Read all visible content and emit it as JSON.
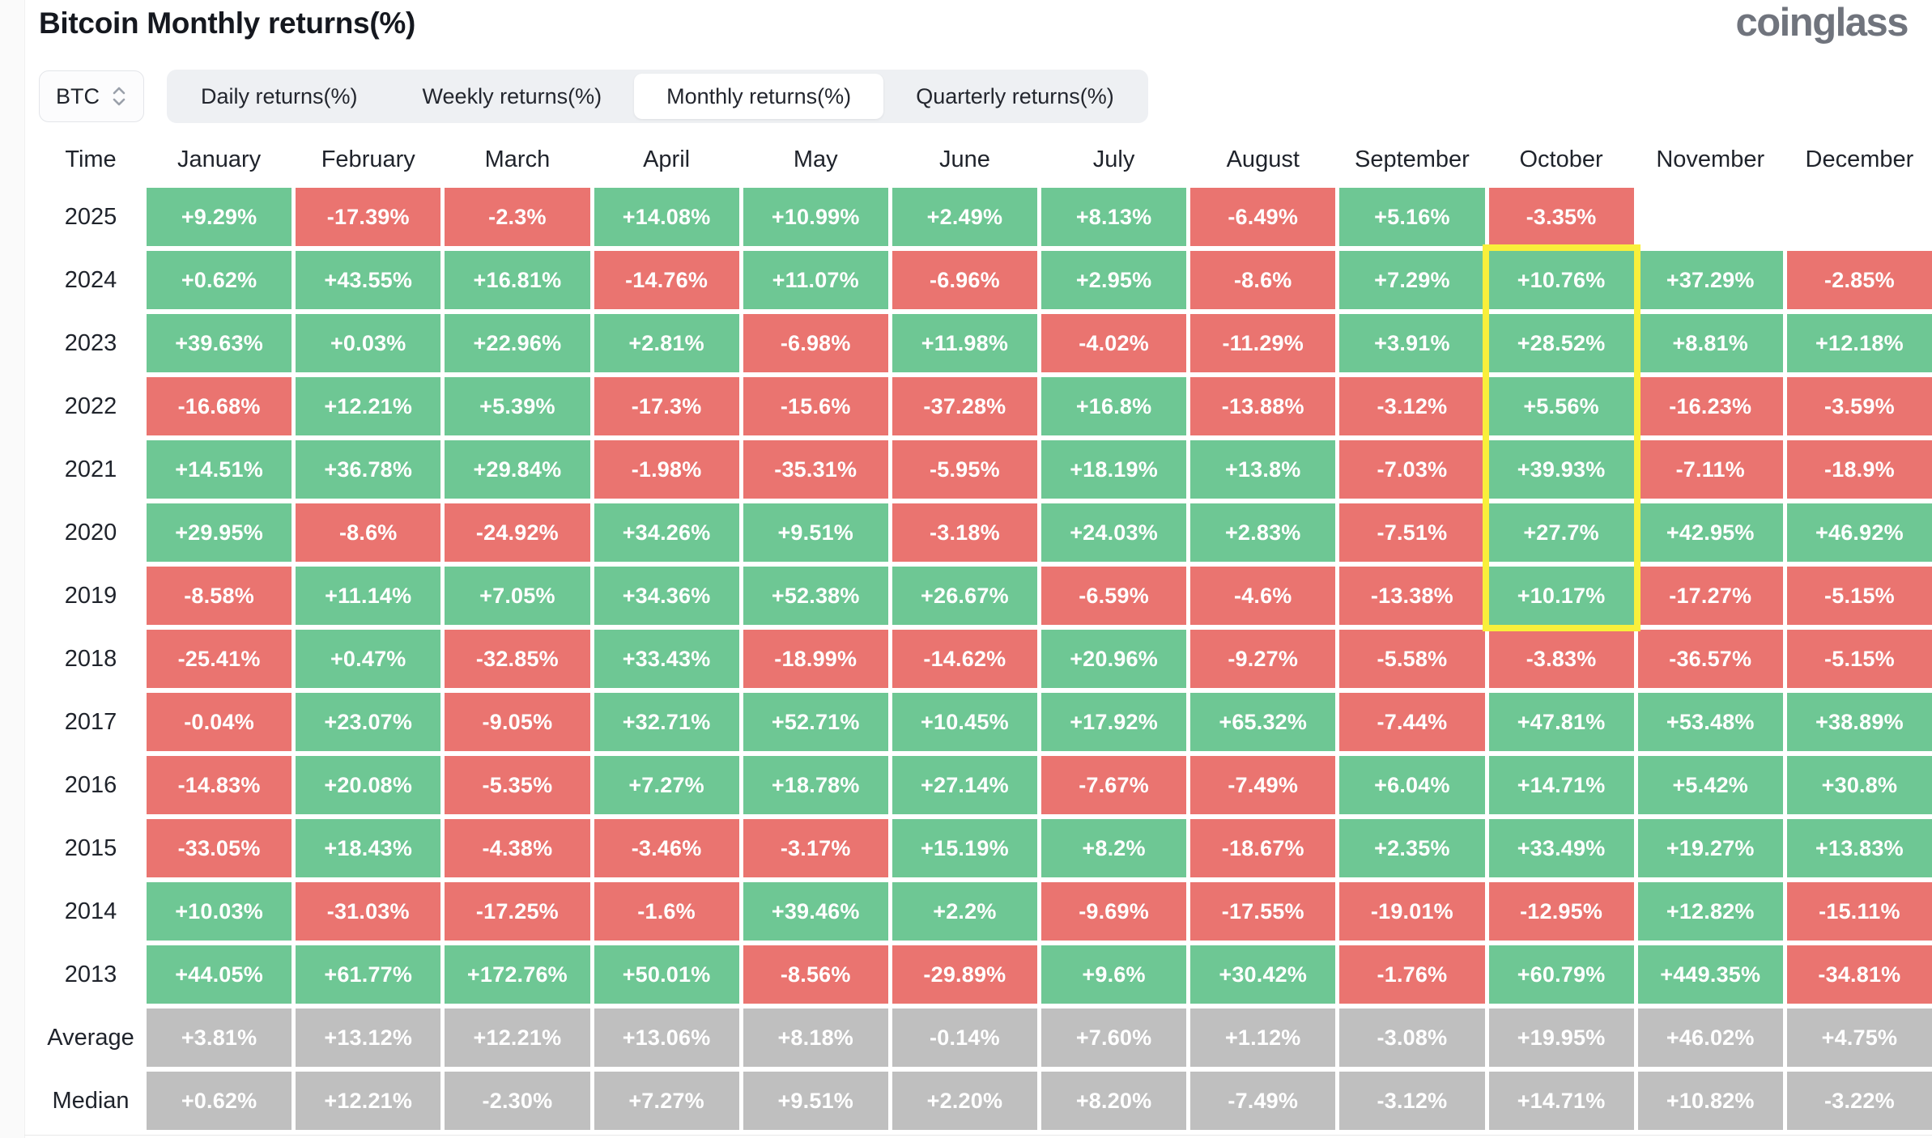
{
  "header": {
    "title": "Bitcoin Monthly returns(%)",
    "brand": "coinglass"
  },
  "controls": {
    "symbol_select": {
      "value": "BTC",
      "icon": "updown-chevrons-icon"
    },
    "tabs": [
      {
        "label": "Daily returns(%)",
        "selected": false
      },
      {
        "label": "Weekly returns(%)",
        "selected": false
      },
      {
        "label": "Monthly returns(%)",
        "selected": true
      },
      {
        "label": "Quarterly returns(%)",
        "selected": false
      }
    ]
  },
  "colors": {
    "positive": "#6ec794",
    "negative": "#ea7470",
    "neutral": "#bfbfbf",
    "highlight": "#f9ef3b"
  },
  "chart_data": {
    "type": "heatmap",
    "title": "Bitcoin Monthly returns(%)",
    "columns": [
      "Time",
      "January",
      "February",
      "March",
      "April",
      "May",
      "June",
      "July",
      "August",
      "September",
      "October",
      "November",
      "December"
    ],
    "rows": [
      {
        "label": "2025",
        "values": [
          "+9.29%",
          "-17.39%",
          "-2.3%",
          "+14.08%",
          "+10.99%",
          "+2.49%",
          "+8.13%",
          "-6.49%",
          "+5.16%",
          "-3.35%",
          "",
          ""
        ]
      },
      {
        "label": "2024",
        "values": [
          "+0.62%",
          "+43.55%",
          "+16.81%",
          "-14.76%",
          "+11.07%",
          "-6.96%",
          "+2.95%",
          "-8.6%",
          "+7.29%",
          "+10.76%",
          "+37.29%",
          "-2.85%"
        ]
      },
      {
        "label": "2023",
        "values": [
          "+39.63%",
          "+0.03%",
          "+22.96%",
          "+2.81%",
          "-6.98%",
          "+11.98%",
          "-4.02%",
          "-11.29%",
          "+3.91%",
          "+28.52%",
          "+8.81%",
          "+12.18%"
        ]
      },
      {
        "label": "2022",
        "values": [
          "-16.68%",
          "+12.21%",
          "+5.39%",
          "-17.3%",
          "-15.6%",
          "-37.28%",
          "+16.8%",
          "-13.88%",
          "-3.12%",
          "+5.56%",
          "-16.23%",
          "-3.59%"
        ]
      },
      {
        "label": "2021",
        "values": [
          "+14.51%",
          "+36.78%",
          "+29.84%",
          "-1.98%",
          "-35.31%",
          "-5.95%",
          "+18.19%",
          "+13.8%",
          "-7.03%",
          "+39.93%",
          "-7.11%",
          "-18.9%"
        ]
      },
      {
        "label": "2020",
        "values": [
          "+29.95%",
          "-8.6%",
          "-24.92%",
          "+34.26%",
          "+9.51%",
          "-3.18%",
          "+24.03%",
          "+2.83%",
          "-7.51%",
          "+27.7%",
          "+42.95%",
          "+46.92%"
        ]
      },
      {
        "label": "2019",
        "values": [
          "-8.58%",
          "+11.14%",
          "+7.05%",
          "+34.36%",
          "+52.38%",
          "+26.67%",
          "-6.59%",
          "-4.6%",
          "-13.38%",
          "+10.17%",
          "-17.27%",
          "-5.15%"
        ]
      },
      {
        "label": "2018",
        "values": [
          "-25.41%",
          "+0.47%",
          "-32.85%",
          "+33.43%",
          "-18.99%",
          "-14.62%",
          "+20.96%",
          "-9.27%",
          "-5.58%",
          "-3.83%",
          "-36.57%",
          "-5.15%"
        ]
      },
      {
        "label": "2017",
        "values": [
          "-0.04%",
          "+23.07%",
          "-9.05%",
          "+32.71%",
          "+52.71%",
          "+10.45%",
          "+17.92%",
          "+65.32%",
          "-7.44%",
          "+47.81%",
          "+53.48%",
          "+38.89%"
        ]
      },
      {
        "label": "2016",
        "values": [
          "-14.83%",
          "+20.08%",
          "-5.35%",
          "+7.27%",
          "+18.78%",
          "+27.14%",
          "-7.67%",
          "-7.49%",
          "+6.04%",
          "+14.71%",
          "+5.42%",
          "+30.8%"
        ]
      },
      {
        "label": "2015",
        "values": [
          "-33.05%",
          "+18.43%",
          "-4.38%",
          "-3.46%",
          "-3.17%",
          "+15.19%",
          "+8.2%",
          "-18.67%",
          "+2.35%",
          "+33.49%",
          "+19.27%",
          "+13.83%"
        ]
      },
      {
        "label": "2014",
        "values": [
          "+10.03%",
          "-31.03%",
          "-17.25%",
          "-1.6%",
          "+39.46%",
          "+2.2%",
          "-9.69%",
          "-17.55%",
          "-19.01%",
          "-12.95%",
          "+12.82%",
          "-15.11%"
        ]
      },
      {
        "label": "2013",
        "values": [
          "+44.05%",
          "+61.77%",
          "+172.76%",
          "+50.01%",
          "-8.56%",
          "-29.89%",
          "+9.6%",
          "+30.42%",
          "-1.76%",
          "+60.79%",
          "+449.35%",
          "-34.81%"
        ]
      },
      {
        "label": "Average",
        "neutral": true,
        "values": [
          "+3.81%",
          "+13.12%",
          "+12.21%",
          "+13.06%",
          "+8.18%",
          "-0.14%",
          "+7.60%",
          "+1.12%",
          "-3.08%",
          "+19.95%",
          "+46.02%",
          "+4.75%"
        ]
      },
      {
        "label": "Median",
        "neutral": true,
        "values": [
          "+0.62%",
          "+12.21%",
          "-2.30%",
          "+7.27%",
          "+9.51%",
          "+2.20%",
          "+8.20%",
          "-7.49%",
          "-3.12%",
          "+14.71%",
          "+10.82%",
          "-3.22%"
        ]
      }
    ],
    "highlight_box": {
      "column": "October",
      "from_row": "2024",
      "to_row": "2019"
    }
  }
}
